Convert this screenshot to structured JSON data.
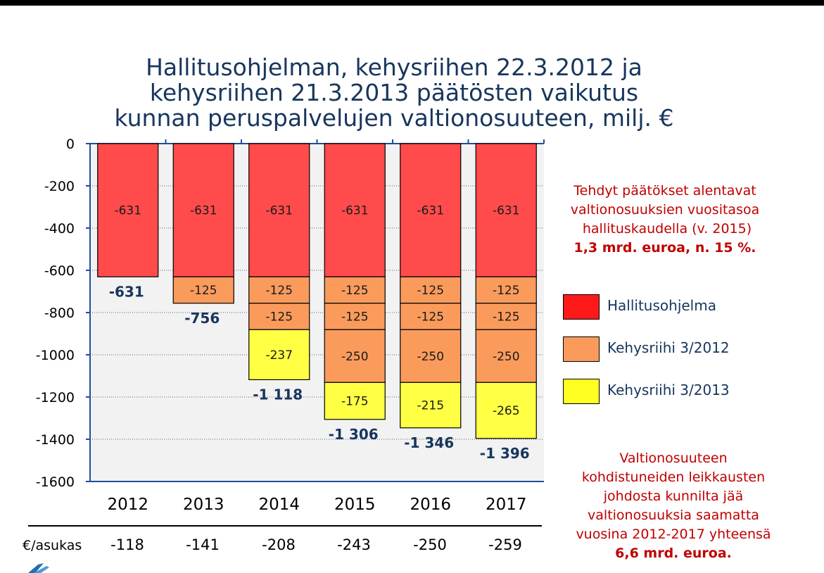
{
  "title_lines": [
    "Hallitusohjelman, kehysriihen 22.3.2012 ja",
    "kehysriihen 21.3.2013 päätösten vaikutus",
    "kunnan peruspalvelujen valtionosuuteen, milj. €"
  ],
  "colors": {
    "hallitusohjelma": "#ff4b4b",
    "kehysriihi_2012": "#fa9b5c",
    "kehysriihi_2013": "#ffff44",
    "title": "#17365d",
    "note": "#c00000",
    "plot_bg": "#f2f2f2"
  },
  "chart_data": {
    "type": "bar",
    "stacked": true,
    "title": "Hallitusohjelman, kehysriihen 22.3.2012 ja kehysriihen 21.3.2013 päätösten vaikutus kunnan peruspalvelujen valtionosuuteen, milj. €",
    "categories": [
      "2012",
      "2013",
      "2014",
      "2015",
      "2016",
      "2017"
    ],
    "ylim": [
      -1600,
      0
    ],
    "yticks": [
      0,
      -200,
      -400,
      -600,
      -800,
      -1000,
      -1200,
      -1400,
      -1600
    ],
    "ytick_labels": [
      "0",
      "-200",
      "-400",
      "-600",
      "-800",
      "-1000",
      "-1200",
      "-1400",
      "-1600"
    ],
    "grid": true,
    "legend_position": "right",
    "segments": [
      [
        {
          "series": "hallitusohjelma",
          "value": -631,
          "label": "-631"
        }
      ],
      [
        {
          "series": "hallitusohjelma",
          "value": -631,
          "label": "-631"
        },
        {
          "series": "kehysriihi_2012",
          "value": -125,
          "label": "-125"
        }
      ],
      [
        {
          "series": "hallitusohjelma",
          "value": -631,
          "label": "-631"
        },
        {
          "series": "kehysriihi_2012",
          "value": -125,
          "label": "-125"
        },
        {
          "series": "kehysriihi_2012",
          "value": -125,
          "label": "-125"
        },
        {
          "series": "kehysriihi_2013",
          "value": -237,
          "label": "-237"
        }
      ],
      [
        {
          "series": "hallitusohjelma",
          "value": -631,
          "label": "-631"
        },
        {
          "series": "kehysriihi_2012",
          "value": -125,
          "label": "-125"
        },
        {
          "series": "kehysriihi_2012",
          "value": -125,
          "label": "-125"
        },
        {
          "series": "kehysriihi_2012",
          "value": -250,
          "label": "-250"
        },
        {
          "series": "kehysriihi_2013",
          "value": -175,
          "label": "-175"
        }
      ],
      [
        {
          "series": "hallitusohjelma",
          "value": -631,
          "label": "-631"
        },
        {
          "series": "kehysriihi_2012",
          "value": -125,
          "label": "-125"
        },
        {
          "series": "kehysriihi_2012",
          "value": -125,
          "label": "-125"
        },
        {
          "series": "kehysriihi_2012",
          "value": -250,
          "label": "-250"
        },
        {
          "series": "kehysriihi_2013",
          "value": -215,
          "label": "-215"
        }
      ],
      [
        {
          "series": "hallitusohjelma",
          "value": -631,
          "label": "-631"
        },
        {
          "series": "kehysriihi_2012",
          "value": -125,
          "label": "-125"
        },
        {
          "series": "kehysriihi_2012",
          "value": -125,
          "label": "-125"
        },
        {
          "series": "kehysriihi_2012",
          "value": -250,
          "label": "-250"
        },
        {
          "series": "kehysriihi_2013",
          "value": -265,
          "label": "-265"
        }
      ]
    ],
    "totals": [
      -631,
      -756,
      -1118,
      -1306,
      -1346,
      -1396
    ],
    "total_labels": [
      "-631",
      "-756",
      "-1 118",
      "-1 306",
      "-1 346",
      "-1 396"
    ],
    "legend": [
      {
        "series": "hallitusohjelma",
        "label": "Hallitusohjelma"
      },
      {
        "series": "kehysriihi_2012",
        "label": "Kehysriihi 3/2012"
      },
      {
        "series": "kehysriihi_2013",
        "label": "Kehysriihi 3/2013"
      }
    ]
  },
  "per_capita": {
    "label": "€/asukas",
    "values": [
      "-118",
      "-141",
      "-208",
      "-243",
      "-250",
      "-259"
    ]
  },
  "note_top": {
    "lines": [
      "Tehdyt päätökset  alentavat",
      "valtionosuuksien vuositasoa",
      " hallituskaudella (v. 2015)"
    ],
    "bold_line": "1,3 mrd. euroa, n. 15 %."
  },
  "note_bottom": {
    "lines": [
      "Valtionosuuteen",
      "kohdistuneiden leikkausten",
      "johdosta kunnilta jää",
      "valtionosuuksia saamatta",
      "vuosina 2012-2017 yhteensä"
    ],
    "bold_line": "6,6 mrd. euroa."
  }
}
